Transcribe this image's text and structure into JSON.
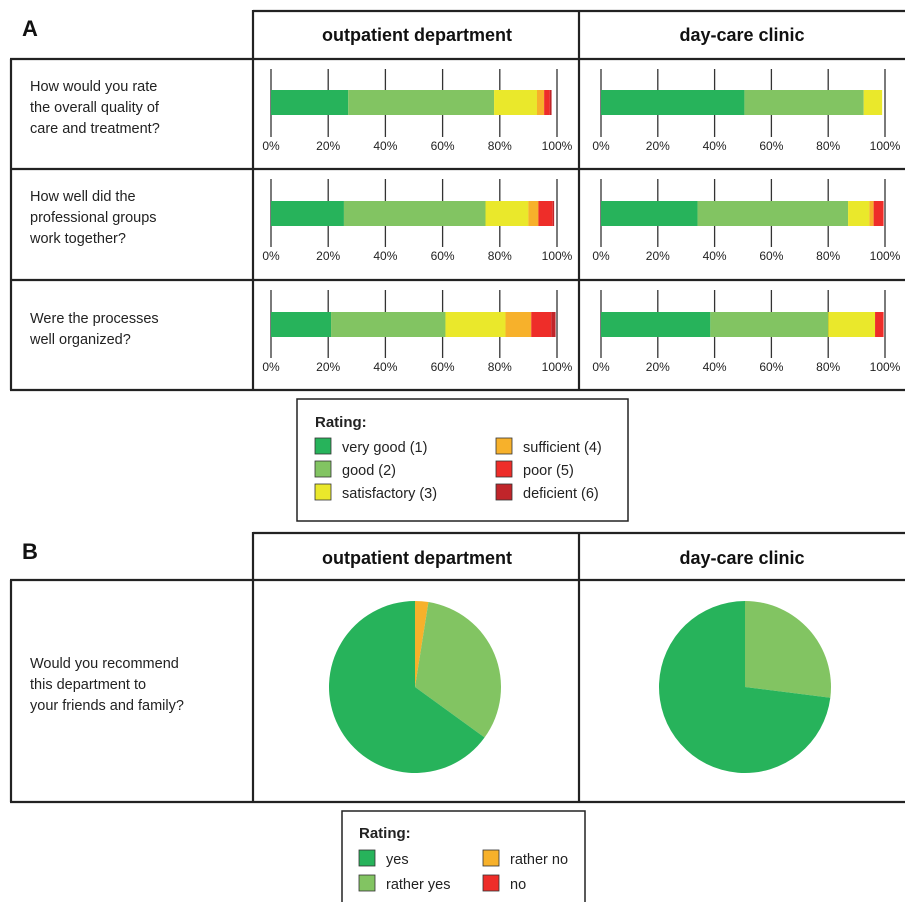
{
  "panel_a": {
    "letter": "A",
    "columns": [
      "outpatient department",
      "day-care clinic"
    ],
    "questions": [
      {
        "lines": [
          "How would you rate",
          "the overall quality of",
          "care and treatment?"
        ]
      },
      {
        "lines": [
          "How well did the",
          "professional groups",
          "work together?"
        ]
      },
      {
        "lines": [
          "Were the processes",
          "well organized?"
        ]
      }
    ],
    "legend": {
      "title": "Rating:",
      "items": [
        {
          "label": "very good (1)",
          "color": "#27b35b"
        },
        {
          "label": "good (2)",
          "color": "#82c462"
        },
        {
          "label": "satisfactory (3)",
          "color": "#eae82b"
        },
        {
          "label": "sufficient (4)",
          "color": "#f7b12b"
        },
        {
          "label": "poor (5)",
          "color": "#ee2d29"
        },
        {
          "label": "deficient (6)",
          "color": "#c0252a"
        }
      ]
    },
    "tick_labels": [
      "0%",
      "20%",
      "40%",
      "60%",
      "80%",
      "100%"
    ]
  },
  "panel_b": {
    "letter": "B",
    "columns": [
      "outpatient department",
      "day-care clinic"
    ],
    "question": {
      "lines": [
        "Would you recommend",
        "this department to",
        "your friends and family?"
      ]
    },
    "legend": {
      "title": "Rating:",
      "items": [
        {
          "label": "yes",
          "color": "#27b35b"
        },
        {
          "label": "rather yes",
          "color": "#82c462"
        },
        {
          "label": "rather no",
          "color": "#f7b12b"
        },
        {
          "label": "no",
          "color": "#ee2d29"
        }
      ]
    }
  },
  "chart_data": [
    {
      "type": "bar",
      "orientation": "horizontal-stacked",
      "title": "outpatient department",
      "categories": [
        "How would you rate the overall quality of care and treatment?",
        "How well did the professional groups work together?",
        "Were the processes well organized?"
      ],
      "series": [
        {
          "name": "very good (1)",
          "values": [
            27,
            25.5,
            21
          ]
        },
        {
          "name": "good (2)",
          "values": [
            51,
            49.5,
            40
          ]
        },
        {
          "name": "satisfactory (3)",
          "values": [
            15,
            15,
            21
          ]
        },
        {
          "name": "sufficient (4)",
          "values": [
            2.5,
            3.5,
            9
          ]
        },
        {
          "name": "poor (5)",
          "values": [
            2,
            5,
            7
          ]
        },
        {
          "name": "deficient (6)",
          "values": [
            0.6,
            0.5,
            1.5
          ]
        }
      ],
      "xlim": [
        0,
        100
      ]
    },
    {
      "type": "bar",
      "orientation": "horizontal-stacked",
      "title": "day-care clinic",
      "categories": [
        "How would you rate the overall quality of care and treatment?",
        "How well did the professional groups work together?",
        "Were the processes well organized?"
      ],
      "series": [
        {
          "name": "very good (1)",
          "values": [
            50.5,
            34,
            38.5
          ]
        },
        {
          "name": "good (2)",
          "values": [
            42,
            53,
            41.5
          ]
        },
        {
          "name": "satisfactory (3)",
          "values": [
            6.5,
            7.5,
            16.5
          ]
        },
        {
          "name": "sufficient (4)",
          "values": [
            0,
            1.5,
            0
          ]
        },
        {
          "name": "poor (5)",
          "values": [
            0,
            3.5,
            3
          ]
        },
        {
          "name": "deficient (6)",
          "values": [
            0,
            0,
            0
          ]
        }
      ],
      "xlim": [
        0,
        100
      ]
    },
    {
      "type": "pie",
      "title": "outpatient department",
      "categories": [
        "yes",
        "rather yes",
        "rather no",
        "no"
      ],
      "values": [
        65,
        32.5,
        2.5,
        0
      ]
    },
    {
      "type": "pie",
      "title": "day-care clinic",
      "categories": [
        "yes",
        "rather yes",
        "rather no",
        "no"
      ],
      "values": [
        73,
        27,
        0,
        0
      ]
    }
  ]
}
